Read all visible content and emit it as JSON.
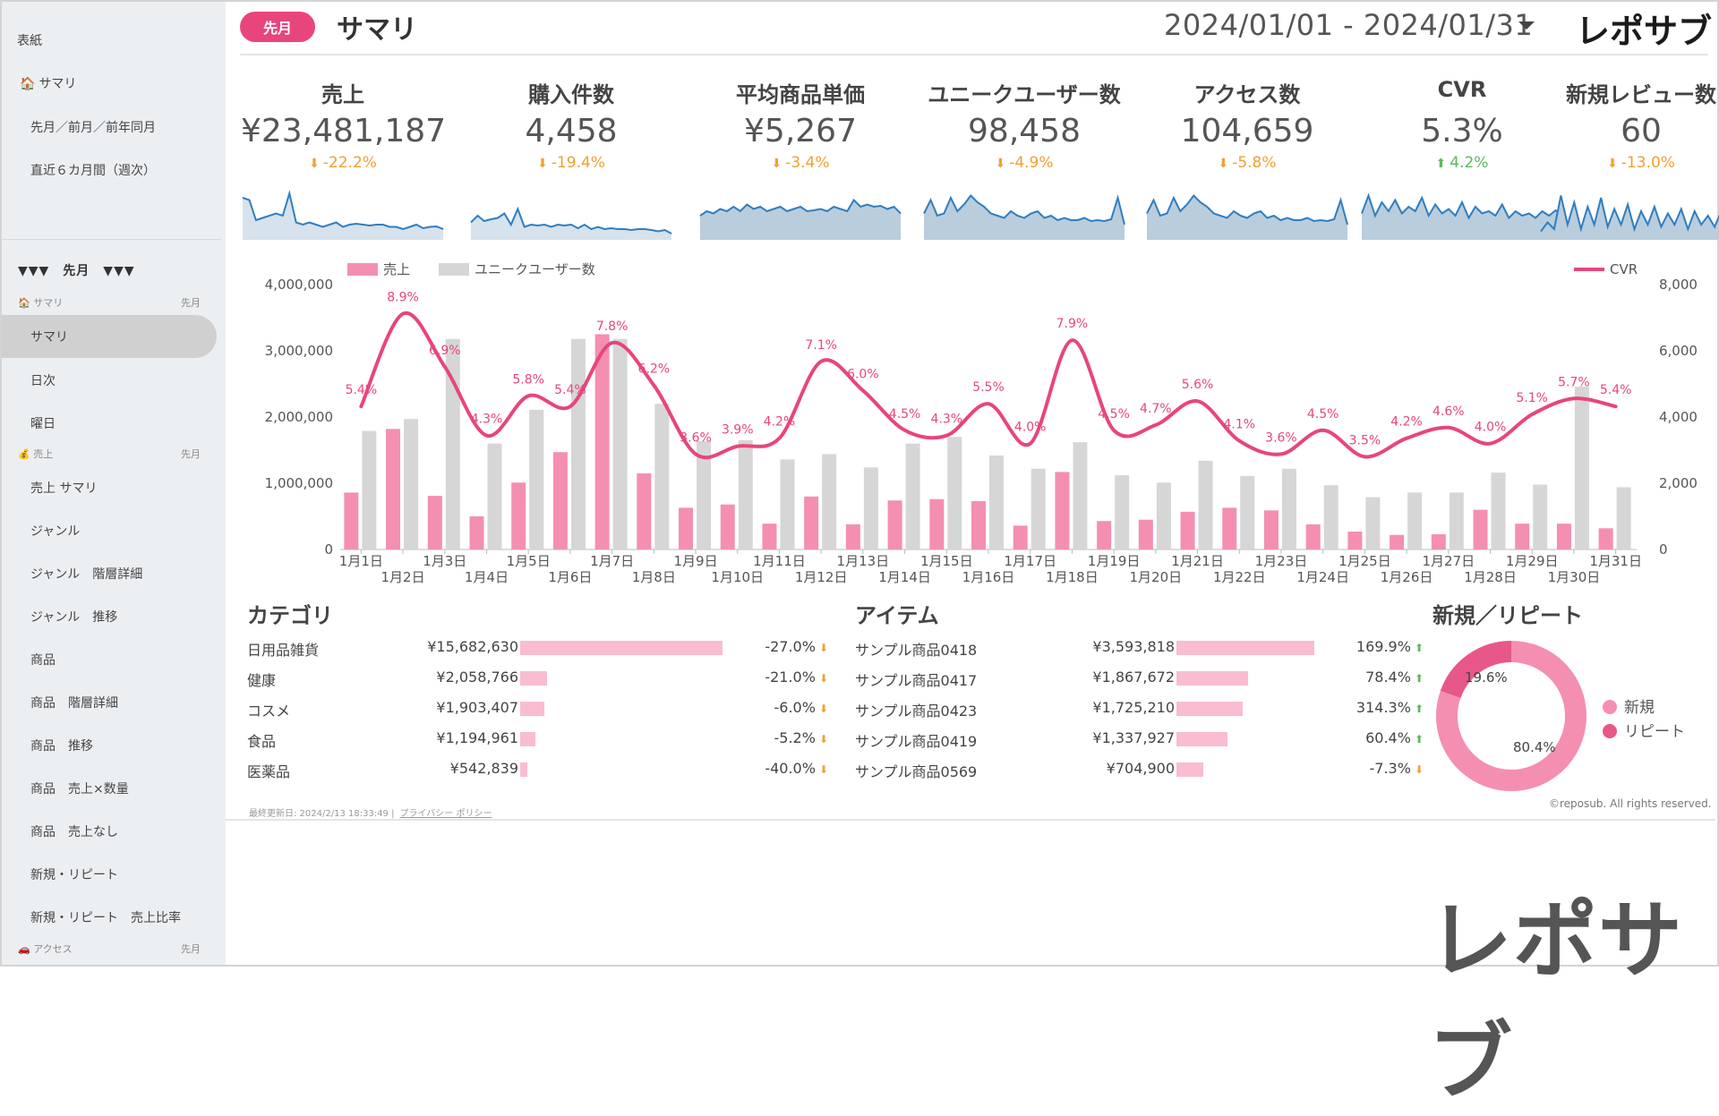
{
  "header": {
    "period_badge": "先月",
    "page_title": "サマリ",
    "date_range": "2024/01/01 - 2024/01/31",
    "brand": "レポサブ"
  },
  "sidebar": {
    "cover": "表紙",
    "summary_top": "サマリ",
    "top_items": [
      "先月／前月／前年同月",
      "直近６カ月間（週次）"
    ],
    "period_header": "▼▼▼　先月　▼▼▼",
    "sections": [
      {
        "label": "サマリ",
        "period": "先月",
        "items": [
          "サマリ",
          "日次",
          "曜日"
        ],
        "selected": 0
      },
      {
        "label": "売上",
        "period": "先月",
        "items": [
          "売上 サマリ",
          "ジャンル",
          "ジャンル　階層詳細",
          "ジャンル　推移",
          "商品",
          "商品　階層詳細",
          "商品　推移",
          "商品　売上×数量",
          "商品　売上なし",
          "新規・リピート",
          "新規・リピート　売上比率"
        ]
      },
      {
        "label": "アクセス",
        "period": "先月",
        "items": []
      }
    ]
  },
  "kpis": [
    {
      "label": "売上",
      "value": "¥23,481,187",
      "change": "-22.2%",
      "direction": "down"
    },
    {
      "label": "購入件数",
      "value": "4,458",
      "change": "-19.4%",
      "direction": "down"
    },
    {
      "label": "平均商品単価",
      "value": "¥5,267",
      "change": "-3.4%",
      "direction": "down"
    },
    {
      "label": "ユニークユーザー数",
      "value": "98,458",
      "change": "-4.9%",
      "direction": "down"
    },
    {
      "label": "アクセス数",
      "value": "104,659",
      "change": "-5.8%",
      "direction": "down"
    },
    {
      "label": "CVR",
      "value": "5.3%",
      "change": "4.2%",
      "direction": "up"
    },
    {
      "label": "新規レビュー数",
      "value": "60",
      "change": "-13.0%",
      "direction": "down"
    }
  ],
  "sparklines": [
    {
      "style": "line",
      "values": [
        0.9,
        0.85,
        0.4,
        0.45,
        0.5,
        0.55,
        0.5,
        1.0,
        0.35,
        0.3,
        0.35,
        0.3,
        0.25,
        0.3,
        0.35,
        0.25,
        0.3,
        0.32,
        0.3,
        0.28,
        0.3,
        0.3,
        0.25,
        0.25,
        0.2,
        0.25,
        0.3,
        0.22,
        0.25,
        0.26,
        0.2
      ]
    },
    {
      "style": "line",
      "values": [
        0.35,
        0.5,
        0.38,
        0.42,
        0.45,
        0.55,
        0.3,
        0.65,
        0.25,
        0.3,
        0.28,
        0.3,
        0.25,
        0.3,
        0.28,
        0.3,
        0.22,
        0.3,
        0.2,
        0.25,
        0.2,
        0.22,
        0.2,
        0.2,
        0.18,
        0.2,
        0.2,
        0.18,
        0.15,
        0.18,
        0.1
      ]
    },
    {
      "style": "area",
      "values": [
        0.5,
        0.6,
        0.55,
        0.65,
        0.6,
        0.7,
        0.6,
        0.75,
        0.65,
        0.7,
        0.6,
        0.65,
        0.7,
        0.6,
        0.65,
        0.7,
        0.6,
        0.62,
        0.65,
        0.6,
        0.7,
        0.65,
        0.6,
        0.85,
        0.7,
        0.75,
        0.7,
        0.72,
        0.65,
        0.7,
        0.55
      ]
    },
    {
      "style": "area",
      "values": [
        0.55,
        0.85,
        0.5,
        0.55,
        0.9,
        0.6,
        0.75,
        0.95,
        0.8,
        0.7,
        0.55,
        0.5,
        0.45,
        0.6,
        0.5,
        0.45,
        0.55,
        0.6,
        0.45,
        0.5,
        0.4,
        0.45,
        0.4,
        0.4,
        0.45,
        0.38,
        0.4,
        0.38,
        0.42,
        0.9,
        0.3
      ]
    },
    {
      "style": "area",
      "values": [
        0.55,
        0.85,
        0.5,
        0.55,
        0.9,
        0.6,
        0.75,
        0.95,
        0.8,
        0.7,
        0.55,
        0.5,
        0.45,
        0.6,
        0.5,
        0.45,
        0.55,
        0.6,
        0.45,
        0.5,
        0.4,
        0.45,
        0.4,
        0.4,
        0.45,
        0.38,
        0.4,
        0.38,
        0.42,
        0.85,
        0.3
      ]
    },
    {
      "style": "area",
      "values": [
        0.55,
        0.95,
        0.5,
        0.8,
        0.6,
        0.85,
        0.55,
        0.7,
        0.6,
        0.9,
        0.5,
        0.75,
        0.55,
        0.65,
        0.5,
        0.8,
        0.45,
        0.7,
        0.55,
        0.6,
        0.5,
        0.75,
        0.45,
        0.6,
        0.5,
        0.55,
        0.45,
        0.6,
        0.5,
        0.62,
        0.5
      ]
    },
    {
      "style": "area",
      "values": [
        0.15,
        0.35,
        0.2,
        0.95,
        0.3,
        0.8,
        0.2,
        0.7,
        0.3,
        0.9,
        0.25,
        0.65,
        0.3,
        0.75,
        0.2,
        0.6,
        0.3,
        0.7,
        0.25,
        0.55,
        0.3,
        0.65,
        0.2,
        0.6,
        0.3,
        0.5,
        0.25,
        0.6,
        0.3,
        0.55,
        0.9
      ]
    }
  ],
  "chart_data": {
    "type": "bar",
    "categories": [
      "1月1日",
      "1月2日",
      "1月3日",
      "1月4日",
      "1月5日",
      "1月6日",
      "1月7日",
      "1月8日",
      "1月9日",
      "1月10日",
      "1月11日",
      "1月12日",
      "1月13日",
      "1月14日",
      "1月15日",
      "1月16日",
      "1月17日",
      "1月18日",
      "1月19日",
      "1月20日",
      "1月21日",
      "1月22日",
      "1月23日",
      "1月24日",
      "1月25日",
      "1月26日",
      "1月27日",
      "1月28日",
      "1月29日",
      "1月30日",
      "1月31日"
    ],
    "series": [
      {
        "name": "売上",
        "axis": "left",
        "type": "bar",
        "color": "#f48fb1",
        "values": [
          860000,
          1820000,
          810000,
          500000,
          1010000,
          1470000,
          3250000,
          1150000,
          630000,
          680000,
          390000,
          800000,
          380000,
          740000,
          760000,
          730000,
          360000,
          1170000,
          430000,
          450000,
          570000,
          630000,
          590000,
          380000,
          270000,
          220000,
          230000,
          600000,
          390000,
          390000,
          320000
        ]
      },
      {
        "name": "ユニークユーザー数",
        "axis": "right",
        "type": "bar",
        "color": "#d6d6d6",
        "values": [
          3580,
          3940,
          6360,
          3200,
          4220,
          6360,
          6360,
          4400,
          3280,
          3300,
          2720,
          2880,
          2480,
          3200,
          3400,
          2840,
          2440,
          3240,
          2240,
          2020,
          2680,
          2220,
          2440,
          1940,
          1580,
          1720,
          1720,
          2320,
          1960,
          4920,
          1880
        ]
      },
      {
        "name": "CVR",
        "axis": "right-pct",
        "type": "line",
        "color": "#e8457c",
        "values": [
          5.4,
          8.9,
          6.9,
          4.3,
          5.8,
          5.4,
          7.8,
          6.2,
          3.6,
          3.9,
          4.2,
          7.1,
          6.0,
          4.5,
          4.3,
          5.5,
          4.0,
          7.9,
          4.5,
          4.7,
          5.6,
          4.1,
          3.6,
          4.5,
          3.5,
          4.2,
          4.6,
          4.0,
          5.1,
          5.7,
          5.4
        ]
      }
    ],
    "y_left": {
      "min": 0,
      "max": 4000000,
      "ticks": [
        "0",
        "1,000,000",
        "2,000,000",
        "3,000,000",
        "4,000,000"
      ]
    },
    "y_right": {
      "min": 0,
      "max": 8000,
      "ticks": [
        "0",
        "2,000",
        "4,000",
        "6,000",
        "8,000"
      ]
    },
    "cvr_labels": [
      "5.4%",
      "8.9%",
      "6.9%",
      "4.3%",
      "5.8%",
      "5.4%",
      "7.8%",
      "6.2%",
      "3.6%",
      "3.9%",
      "4.2%",
      "7.1%",
      "6.0%",
      "4.5%",
      "4.3%",
      "5.5%",
      "4.0%",
      "7.9%",
      "4.5%",
      "4.7%",
      "5.6%",
      "4.1%",
      "3.6%",
      "4.5%",
      "3.5%",
      "4.2%",
      "4.6%",
      "4.0%",
      "5.1%",
      "5.7%",
      "5.4%"
    ],
    "legend": {
      "left": [
        "売上",
        "ユニークユーザー数"
      ],
      "right": [
        "CVR"
      ]
    }
  },
  "category": {
    "title": "カテゴリ",
    "rows": [
      {
        "name": "日用品雑貨",
        "value": "¥15,682,630",
        "ratio": 1.0,
        "pct": "-27.0%",
        "dir": "down"
      },
      {
        "name": "健康",
        "value": "¥2,058,766",
        "ratio": 0.131,
        "pct": "-21.0%",
        "dir": "down"
      },
      {
        "name": "コスメ",
        "value": "¥1,903,407",
        "ratio": 0.121,
        "pct": "-6.0%",
        "dir": "down"
      },
      {
        "name": "食品",
        "value": "¥1,194,961",
        "ratio": 0.076,
        "pct": "-5.2%",
        "dir": "down"
      },
      {
        "name": "医薬品",
        "value": "¥542,839",
        "ratio": 0.035,
        "pct": "-40.0%",
        "dir": "down"
      }
    ]
  },
  "items": {
    "title": "アイテム",
    "rows": [
      {
        "name": "サンプル商品0418",
        "value": "¥3,593,818",
        "ratio": 1.0,
        "pct": "169.9%",
        "dir": "up"
      },
      {
        "name": "サンプル商品0417",
        "value": "¥1,867,672",
        "ratio": 0.52,
        "pct": "78.4%",
        "dir": "up"
      },
      {
        "name": "サンプル商品0423",
        "value": "¥1,725,210",
        "ratio": 0.48,
        "pct": "314.3%",
        "dir": "up"
      },
      {
        "name": "サンプル商品0419",
        "value": "¥1,337,927",
        "ratio": 0.372,
        "pct": "60.4%",
        "dir": "up"
      },
      {
        "name": "サンプル商品0569",
        "value": "¥704,900",
        "ratio": 0.196,
        "pct": "-7.3%",
        "dir": "down"
      }
    ]
  },
  "new_repeat": {
    "title": "新規／リピート",
    "slices": [
      {
        "name": "新規",
        "value": 80.4,
        "label": "80.4%",
        "color": "#f48fb1"
      },
      {
        "name": "リピート",
        "value": 19.6,
        "label": "19.6%",
        "color": "#e8578a"
      }
    ]
  },
  "footer": {
    "updated": "最終更新日: 2024/2/13 18:33:49",
    "privacy": "プライバシー ポリシー",
    "copyright": "©reposub. All rights reserved."
  },
  "watermark_brand": "レポサブ",
  "colors": {
    "accent": "#e8457c",
    "down": "#f0a030",
    "up": "#5cb85c",
    "bar_pink": "#f9bcd1"
  }
}
